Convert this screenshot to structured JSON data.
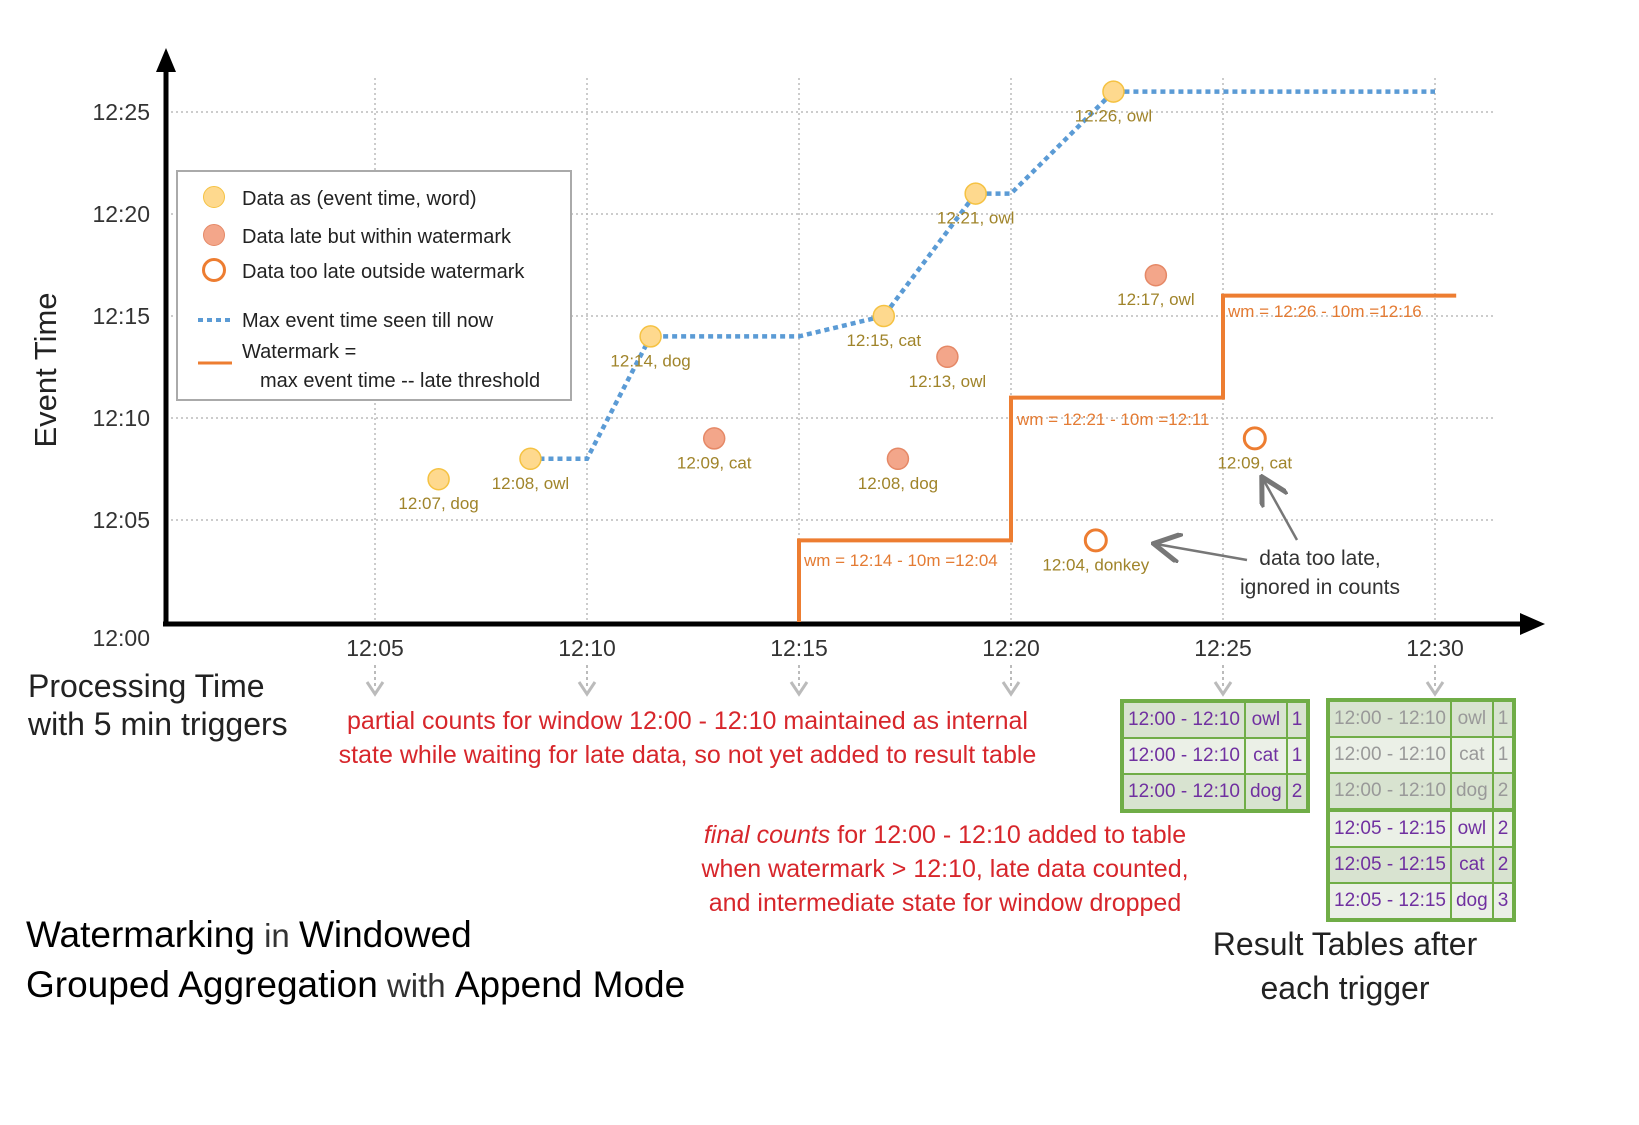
{
  "title": {
    "parts": [
      {
        "text": "Watermarking",
        "bold": true
      },
      {
        "text": " in ",
        "bold": false
      },
      {
        "text": "Windowed",
        "bold": true
      },
      {
        "text": "Grouped Aggregation",
        "bold": true,
        "newline": true
      },
      {
        "text": " with ",
        "bold": false
      },
      {
        "text": "Append Mode",
        "bold": true
      }
    ]
  },
  "axes": {
    "y_label": "Event Time",
    "x_label_line1": "Processing Time",
    "x_label_line2": "with 5 min triggers",
    "y_ticks": [
      "12:00",
      "12:05",
      "12:10",
      "12:15",
      "12:20",
      "12:25"
    ],
    "x_ticks": [
      "12:05",
      "12:10",
      "12:15",
      "12:20",
      "12:25",
      "12:30"
    ]
  },
  "legend": {
    "items": [
      {
        "kind": "on-time",
        "label": "Data as (event time, word)"
      },
      {
        "kind": "late",
        "label": "Data late but within watermark"
      },
      {
        "kind": "too-late",
        "label": "Data too late outside watermark"
      },
      {
        "kind": "max-line",
        "label": "Max event time seen till now"
      },
      {
        "kind": "watermark-line",
        "label": "Watermark =",
        "label2": "max event time -- late threshold"
      }
    ]
  },
  "colors": {
    "on_time_fill": "#fed98e",
    "on_time_stroke": "#f5c242",
    "late_fill": "#f3a68a",
    "late_stroke": "#e58866",
    "too_late_stroke": "#ed7d31",
    "max_line": "#5b9bd5",
    "watermark": "#ed7d31",
    "point_label": "#a0842a",
    "wm_label": "#e47b33",
    "note_red": "#d7262b",
    "table_green": "#70ad47",
    "table_text": "#7030a0"
  },
  "points": [
    {
      "processing": "12:06:30",
      "event": "12:07",
      "word": "dog",
      "kind": "on-time",
      "label": "12:07, dog"
    },
    {
      "processing": "12:08:40",
      "event": "12:08",
      "word": "owl",
      "kind": "on-time",
      "label": "12:08, owl"
    },
    {
      "processing": "12:11:30",
      "event": "12:14",
      "word": "dog",
      "kind": "on-time",
      "label": "12:14, dog"
    },
    {
      "processing": "12:13:00",
      "event": "12:09",
      "word": "cat",
      "kind": "late",
      "label": "12:09, cat"
    },
    {
      "processing": "12:17:00",
      "event": "12:15",
      "word": "cat",
      "kind": "on-time",
      "label": "12:15, cat"
    },
    {
      "processing": "12:17:20",
      "event": "12:08",
      "word": "dog",
      "kind": "late",
      "label": "12:08, dog"
    },
    {
      "processing": "12:18:30",
      "event": "12:13",
      "word": "owl",
      "kind": "late",
      "label": "12:13, owl"
    },
    {
      "processing": "12:19:10",
      "event": "12:21",
      "word": "owl",
      "kind": "on-time",
      "label": "12:21, owl"
    },
    {
      "processing": "12:22:25",
      "event": "12:26",
      "word": "owl",
      "kind": "on-time",
      "label": "12:26, owl"
    },
    {
      "processing": "12:23:25",
      "event": "12:17",
      "word": "owl",
      "kind": "late",
      "label": "12:17, owl"
    },
    {
      "processing": "12:22:00",
      "event": "12:04",
      "word": "donkey",
      "kind": "too-late",
      "label": "12:04, donkey"
    },
    {
      "processing": "12:25:45",
      "event": "12:09",
      "word": "cat",
      "kind": "too-late",
      "label": "12:09, cat"
    }
  ],
  "max_event_line": [
    [
      "12:08:40",
      "12:08"
    ],
    [
      "12:10:00",
      "12:08"
    ],
    [
      "12:11:30",
      "12:14"
    ],
    [
      "12:15:00",
      "12:14"
    ],
    [
      "12:17:00",
      "12:15"
    ],
    [
      "12:19:10",
      "12:21"
    ],
    [
      "12:20:00",
      "12:21"
    ],
    [
      "12:22:25",
      "12:26"
    ],
    [
      "12:30:00",
      "12:26"
    ]
  ],
  "watermark_line": [
    [
      "12:15:00",
      "12:00"
    ],
    [
      "12:15:00",
      "12:04"
    ],
    [
      "12:20:00",
      "12:04"
    ],
    [
      "12:20:00",
      "12:11"
    ],
    [
      "12:25:00",
      "12:11"
    ],
    [
      "12:25:00",
      "12:16"
    ],
    [
      "12:30:30",
      "12:16"
    ]
  ],
  "watermark_labels": [
    "wm = 12:14 - 10m =12:04",
    "wm = 12:21 - 10m =12:11",
    "wm = 12:26 - 10m =12:16"
  ],
  "annotations": {
    "too_late_line1": "data too late,",
    "too_late_line2": "ignored in counts",
    "partial_line1": "partial counts for window 12:00 - 12:10 maintained as internal",
    "partial_line2": "state while waiting for late data, so not yet added  to result table",
    "final_em": "final counts",
    "final_line1_rest": " for 12:00 - 12:10 added to table",
    "final_line2": "when watermark > 12:10, late data counted,",
    "final_line3": "and intermediate state for window dropped",
    "result_tables_line1": "Result Tables after",
    "result_tables_line2": "each trigger"
  },
  "result_tables": [
    {
      "trigger": "12:25",
      "rows": [
        {
          "window": "12:00 - 12:10",
          "word": "owl",
          "count": "1"
        },
        {
          "window": "12:00 - 12:10",
          "word": "cat",
          "count": "1"
        },
        {
          "window": "12:00 - 12:10",
          "word": "dog",
          "count": "2"
        }
      ]
    },
    {
      "trigger": "12:30",
      "rows": [
        {
          "window": "12:00 - 12:10",
          "word": "owl",
          "count": "1",
          "faded": true
        },
        {
          "window": "12:00 - 12:10",
          "word": "cat",
          "count": "1",
          "faded": true
        },
        {
          "window": "12:00 - 12:10",
          "word": "dog",
          "count": "2",
          "faded": true
        },
        {
          "window": "12:05 - 12:15",
          "word": "owl",
          "count": "2"
        },
        {
          "window": "12:05 - 12:15",
          "word": "cat",
          "count": "2"
        },
        {
          "window": "12:05 - 12:15",
          "word": "dog",
          "count": "3"
        }
      ]
    }
  ]
}
